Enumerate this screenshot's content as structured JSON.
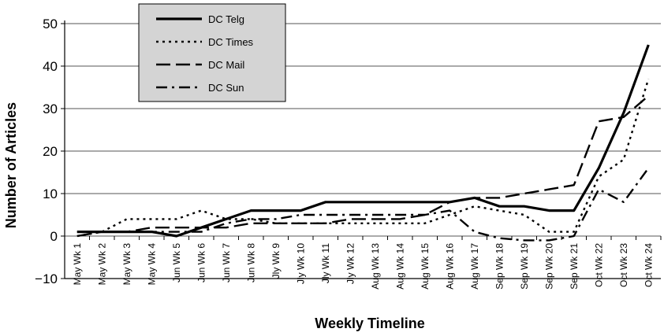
{
  "chart_data": {
    "type": "line",
    "xlabel": "Weekly Timeline",
    "ylabel": "Number of Articles",
    "ylim": [
      -10,
      50
    ],
    "yticks": [
      -10,
      0,
      10,
      20,
      30,
      40,
      50
    ],
    "grid": "horizontal",
    "legend_position": "top-left",
    "categories": [
      "May Wk 1",
      "May Wk 2",
      "May Wk 3",
      "May Wk 4",
      "Jun Wk 5",
      "Jun Wk 6",
      "Jun Wk 7",
      "Jun Wk 8",
      "Jly Wk 9",
      "Jly Wk 10",
      "Jly Wk 11",
      "Jly Wk 12",
      "Aug Wk 13",
      "Aug Wk 14",
      "Aug Wk 15",
      "Aug Wk 16",
      "Aug Wk 17",
      "Sep Wk 18",
      "Sep Wk 19",
      "Sep Wk 20",
      "Sep Wk 21",
      "Oct Wk 22",
      "Oct Wk 23",
      "Oct Wk 24"
    ],
    "series": [
      {
        "name": "DC Telg",
        "style": "solid",
        "values": [
          1,
          1,
          1,
          1,
          0,
          2,
          4,
          6,
          6,
          6,
          8,
          8,
          8,
          8,
          8,
          8,
          9,
          7,
          7,
          6,
          6,
          16,
          29,
          45
        ]
      },
      {
        "name": "DC Times",
        "style": "dotted",
        "values": [
          0,
          1,
          4,
          4,
          4,
          6,
          4,
          4,
          3,
          3,
          3,
          3,
          3,
          3,
          3,
          5,
          7,
          6,
          5,
          1,
          1,
          14,
          18,
          37
        ]
      },
      {
        "name": "DC Mail",
        "style": "dashed",
        "values": [
          0,
          1,
          1,
          2,
          2,
          2,
          2,
          3,
          3,
          3,
          3,
          4,
          4,
          4,
          5,
          8,
          9,
          9,
          10,
          11,
          12,
          27,
          28,
          33
        ]
      },
      {
        "name": "DC Sun",
        "style": "dashdot",
        "values": [
          1,
          1,
          1,
          1,
          1,
          1,
          3,
          4,
          4,
          5,
          5,
          5,
          5,
          5,
          5,
          6,
          1,
          -0.5,
          -1,
          -1,
          0,
          11,
          8,
          16
        ]
      }
    ]
  }
}
